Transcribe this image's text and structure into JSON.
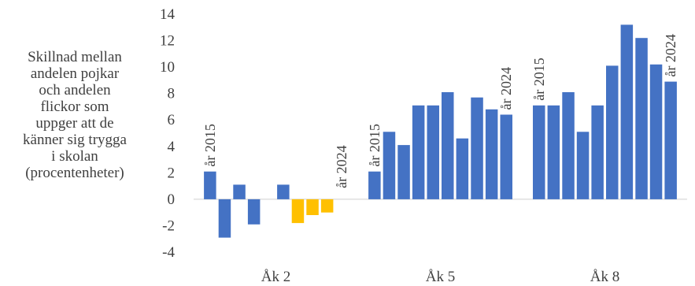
{
  "chart_data": {
    "type": "bar",
    "ylabel_lines": [
      "Skillnad mellan",
      "andelen pojkar",
      "och andelen",
      "flickor som",
      "uppger att de",
      "känner sig trygga",
      "i skolan",
      "(procentenheter)"
    ],
    "ylim": [
      -4,
      14
    ],
    "yticks": [
      -4,
      -2,
      0,
      2,
      4,
      6,
      8,
      10,
      12,
      14
    ],
    "grid": false,
    "legend": "none",
    "colors": {
      "primary": "#4472C4",
      "highlight": "#FFC000",
      "axis": "#D9D9D9",
      "text": "#404040"
    },
    "groups": [
      {
        "label": "Åk 2",
        "bars": [
          {
            "value": 2.1,
            "color": "primary"
          },
          {
            "value": -2.9,
            "color": "primary"
          },
          {
            "value": 1.1,
            "color": "primary"
          },
          {
            "value": -1.9,
            "color": "primary"
          },
          {
            "value": null,
            "color": "primary"
          },
          {
            "value": 1.1,
            "color": "primary"
          },
          {
            "value": -1.8,
            "color": "highlight"
          },
          {
            "value": -1.2,
            "color": "highlight"
          },
          {
            "value": -1.0,
            "color": "highlight"
          },
          {
            "value": null,
            "color": "primary"
          }
        ],
        "annotations": [
          {
            "text": "år 2015",
            "bar": 0
          },
          {
            "text": "år 2024",
            "bar": 9
          }
        ]
      },
      {
        "label": "Åk 5",
        "bars": [
          {
            "value": 2.1,
            "color": "primary"
          },
          {
            "value": 5.1,
            "color": "primary"
          },
          {
            "value": 4.1,
            "color": "primary"
          },
          {
            "value": 7.1,
            "color": "primary"
          },
          {
            "value": 7.1,
            "color": "primary"
          },
          {
            "value": 8.1,
            "color": "primary"
          },
          {
            "value": 4.6,
            "color": "primary"
          },
          {
            "value": 7.7,
            "color": "primary"
          },
          {
            "value": 6.8,
            "color": "primary"
          },
          {
            "value": 6.4,
            "color": "primary"
          }
        ],
        "annotations": [
          {
            "text": "år 2015",
            "bar": 0
          },
          {
            "text": "år 2024",
            "bar": 9
          }
        ]
      },
      {
        "label": "Åk 8",
        "bars": [
          {
            "value": 7.1,
            "color": "primary"
          },
          {
            "value": 7.1,
            "color": "primary"
          },
          {
            "value": 8.1,
            "color": "primary"
          },
          {
            "value": 5.1,
            "color": "primary"
          },
          {
            "value": 7.1,
            "color": "primary"
          },
          {
            "value": 10.1,
            "color": "primary"
          },
          {
            "value": 13.2,
            "color": "primary"
          },
          {
            "value": 12.2,
            "color": "primary"
          },
          {
            "value": 10.2,
            "color": "primary"
          },
          {
            "value": 8.9,
            "color": "primary"
          }
        ],
        "annotations": [
          {
            "text": "år 2015",
            "bar": 0
          },
          {
            "text": "år 2024",
            "bar": 9
          }
        ]
      }
    ]
  }
}
